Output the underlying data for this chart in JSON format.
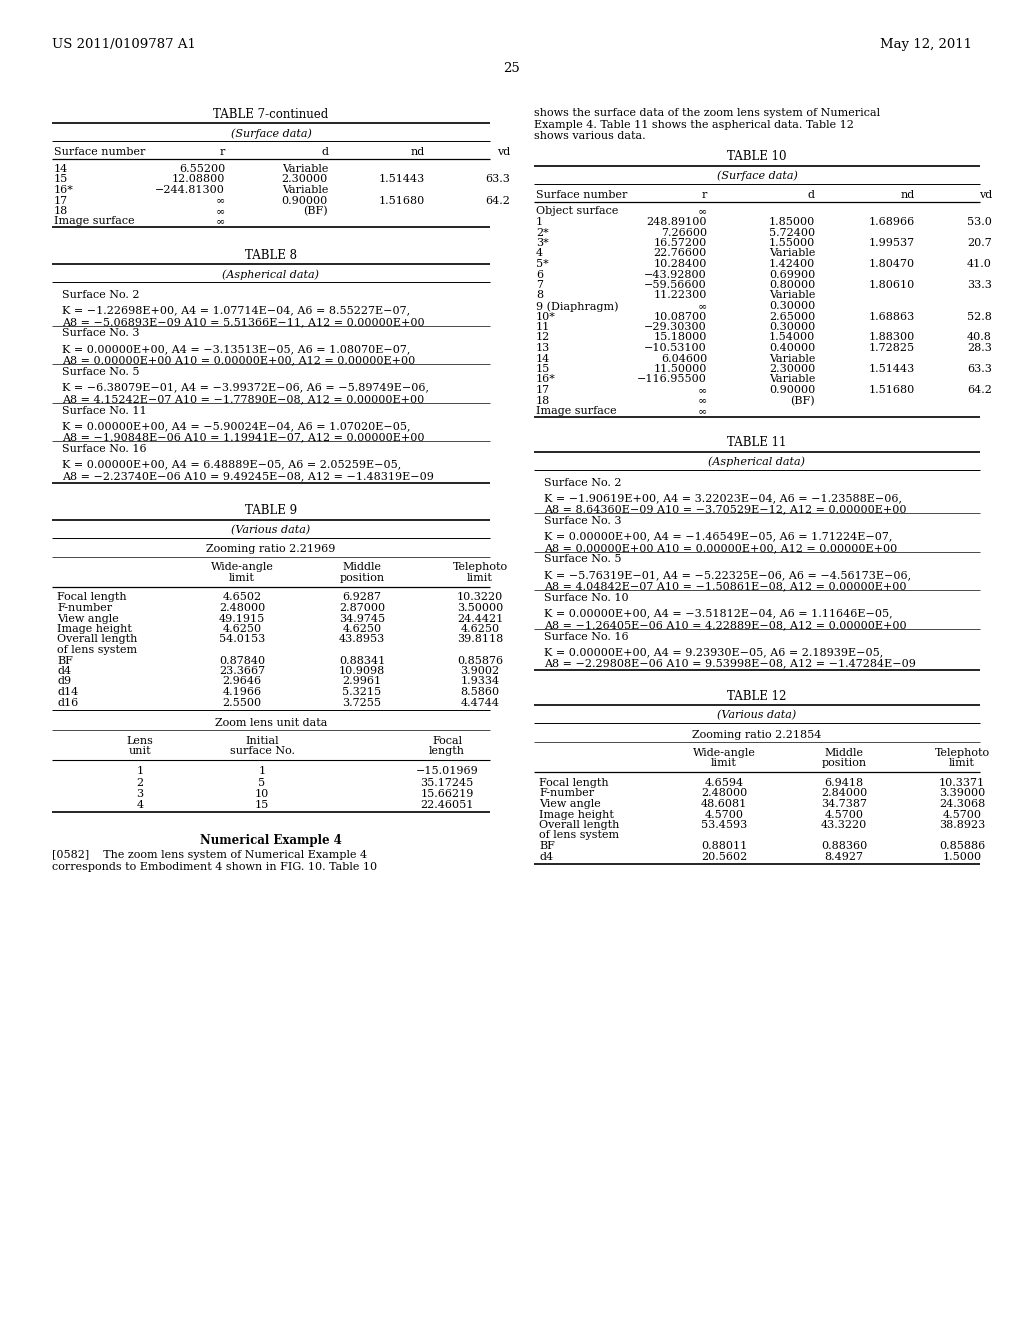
{
  "header_left": "US 2011/0109787 A1",
  "header_right": "May 12, 2011",
  "page_number": "25",
  "background_color": "#ffffff",
  "table7_title": "TABLE 7-continued",
  "table7_subtitle": "(Surface data)",
  "table7_headers": [
    "Surface number",
    "r",
    "d",
    "nd",
    "vd"
  ],
  "table7_rows": [
    [
      "14",
      "6.55200",
      "Variable",
      "",
      ""
    ],
    [
      "15",
      "12.08800",
      "2.30000",
      "1.51443",
      "63.3"
    ],
    [
      "16*",
      "−244.81300",
      "Variable",
      "",
      ""
    ],
    [
      "17",
      "∞",
      "0.90000",
      "1.51680",
      "64.2"
    ],
    [
      "18",
      "∞",
      "(BF)",
      "",
      ""
    ],
    [
      "Image surface",
      "∞",
      "",
      "",
      ""
    ]
  ],
  "table8_title": "TABLE 8",
  "table8_subtitle": "(Aspherical data)",
  "table8_rows": [
    "Surface No. 2",
    "K = −1.22698E+00, A4 = 1.07714E−04, A6 = 8.55227E−07,",
    "A8 = −5.06893E−09 A10 = 5.51366E−11, A12 = 0.00000E+00",
    "Surface No. 3",
    "K = 0.00000E+00, A4 = −3.13513E−05, A6 = 1.08070E−07,",
    "A8 = 0.00000E+00 A10 = 0.00000E+00, A12 = 0.00000E+00",
    "Surface No. 5",
    "K = −6.38079E−01, A4 = −3.99372E−06, A6 = −5.89749E−06,",
    "A8 = 4.15242E−07 A10 = −1.77890E−08, A12 = 0.00000E+00",
    "Surface No. 11",
    "K = 0.00000E+00, A4 = −5.90024E−04, A6 = 1.07020E−05,",
    "A8 = −1.90848E−06 A10 = 1.19941E−07, A12 = 0.00000E+00",
    "Surface No. 16",
    "K = 0.00000E+00, A4 = 6.48889E−05, A6 = 2.05259E−05,",
    "A8 = −2.23740E−06 A10 = 9.49245E−08, A12 = −1.48319E−09"
  ],
  "table9_title": "TABLE 9",
  "table9_subtitle": "(Various data)",
  "table9_zooming": "Zooming ratio 2.21969",
  "table9_col_headers": [
    "",
    "Wide-angle\nlimit",
    "Middle\nposition",
    "Telephoto\nlimit"
  ],
  "table9_rows": [
    [
      "Focal length",
      "4.6502",
      "6.9287",
      "10.3220"
    ],
    [
      "F-number",
      "2.48000",
      "2.87000",
      "3.50000"
    ],
    [
      "View angle",
      "49.1915",
      "34.9745",
      "24.4421"
    ],
    [
      "Image height",
      "4.6250",
      "4.6250",
      "4.6250"
    ],
    [
      "Overall length\nof lens system",
      "54.0153",
      "43.8953",
      "39.8118"
    ],
    [
      "BF",
      "0.87840",
      "0.88341",
      "0.85876"
    ],
    [
      "d4",
      "23.3667",
      "10.9098",
      "3.9002"
    ],
    [
      "d9",
      "2.9646",
      "2.9961",
      "1.9334"
    ],
    [
      "d14",
      "4.1966",
      "5.3215",
      "8.5860"
    ],
    [
      "d16",
      "2.5500",
      "3.7255",
      "4.4744"
    ]
  ],
  "table9_zoom_unit": "Zoom lens unit data",
  "table9_unit_headers": [
    "Lens\nunit",
    "Initial\nsurface No.",
    "",
    "Focal\nlength"
  ],
  "table9_unit_rows": [
    [
      "1",
      "1",
      "",
      "−15.01969"
    ],
    [
      "2",
      "5",
      "",
      "35.17245"
    ],
    [
      "3",
      "10",
      "",
      "15.66219"
    ],
    [
      "4",
      "15",
      "",
      "22.46051"
    ]
  ],
  "num_example_title": "Numerical Example 4",
  "num_example_para_1": "[0582]    The zoom lens system of Numerical Example 4",
  "num_example_para_2": "corresponds to Embodiment 4 shown in FIG. 10. Table 10",
  "right_intro_1": "shows the surface data of the zoom lens system of Numerical",
  "right_intro_2": "Example 4. Table 11 shows the aspherical data. Table 12",
  "right_intro_3": "shows various data.",
  "table10_title": "TABLE 10",
  "table10_subtitle": "(Surface data)",
  "table10_headers": [
    "Surface number",
    "r",
    "d",
    "nd",
    "vd"
  ],
  "table10_rows": [
    [
      "Object surface",
      "∞",
      "",
      "",
      ""
    ],
    [
      "1",
      "248.89100",
      "1.85000",
      "1.68966",
      "53.0"
    ],
    [
      "2*",
      "7.26600",
      "5.72400",
      "",
      ""
    ],
    [
      "3*",
      "16.57200",
      "1.55000",
      "1.99537",
      "20.7"
    ],
    [
      "4",
      "22.76600",
      "Variable",
      "",
      ""
    ],
    [
      "5*",
      "10.28400",
      "1.42400",
      "1.80470",
      "41.0"
    ],
    [
      "6",
      "−43.92800",
      "0.69900",
      "",
      ""
    ],
    [
      "7",
      "−59.56600",
      "0.80000",
      "1.80610",
      "33.3"
    ],
    [
      "8",
      "11.22300",
      "Variable",
      "",
      ""
    ],
    [
      "9 (Diaphragm)",
      "∞",
      "0.30000",
      "",
      ""
    ],
    [
      "10*",
      "10.08700",
      "2.65000",
      "1.68863",
      "52.8"
    ],
    [
      "11",
      "−29.30300",
      "0.30000",
      "",
      ""
    ],
    [
      "12",
      "15.18000",
      "1.54000",
      "1.88300",
      "40.8"
    ],
    [
      "13",
      "−10.53100",
      "0.40000",
      "1.72825",
      "28.3"
    ],
    [
      "14",
      "6.04600",
      "Variable",
      "",
      ""
    ],
    [
      "15",
      "11.50000",
      "2.30000",
      "1.51443",
      "63.3"
    ],
    [
      "16*",
      "−116.95500",
      "Variable",
      "",
      ""
    ],
    [
      "17",
      "∞",
      "0.90000",
      "1.51680",
      "64.2"
    ],
    [
      "18",
      "∞",
      "(BF)",
      "",
      ""
    ],
    [
      "Image surface",
      "∞",
      "",
      "",
      ""
    ]
  ],
  "table11_title": "TABLE 11",
  "table11_subtitle": "(Aspherical data)",
  "table11_rows": [
    "Surface No. 2",
    "K = −1.90619E+00, A4 = 3.22023E−04, A6 = −1.23588E−06,",
    "A8 = 8.64360E−09 A10 = −3.70529E−12, A12 = 0.00000E+00",
    "Surface No. 3",
    "K = 0.00000E+00, A4 = −1.46549E−05, A6 = 1.71224E−07,",
    "A8 = 0.00000E+00 A10 = 0.00000E+00, A12 = 0.00000E+00",
    "Surface No. 5",
    "K = −5.76319E−01, A4 = −5.22325E−06, A6 = −4.56173E−06,",
    "A8 = 4.04842E−07 A10 = −1.50861E−08, A12 = 0.00000E+00",
    "Surface No. 10",
    "K = 0.00000E+00, A4 = −3.51812E−04, A6 = 1.11646E−05,",
    "A8 = −1.26405E−06 A10 = 4.22889E−08, A12 = 0.00000E+00",
    "Surface No. 16",
    "K = 0.00000E+00, A4 = 9.23930E−05, A6 = 2.18939E−05,",
    "A8 = −2.29808E−06 A10 = 9.53998E−08, A12 = −1.47284E−09"
  ],
  "table12_title": "TABLE 12",
  "table12_subtitle": "(Various data)",
  "table12_zooming": "Zooming ratio 2.21854",
  "table12_col_headers": [
    "",
    "Wide-angle\nlimit",
    "Middle\nposition",
    "Telephoto\nlimit"
  ],
  "table12_rows": [
    [
      "Focal length",
      "4.6594",
      "6.9418",
      "10.3371"
    ],
    [
      "F-number",
      "2.48000",
      "2.84000",
      "3.39000"
    ],
    [
      "View angle",
      "48.6081",
      "34.7387",
      "24.3068"
    ],
    [
      "Image height",
      "4.5700",
      "4.5700",
      "4.5700"
    ],
    [
      "Overall length\nof lens system",
      "53.4593",
      "43.3220",
      "38.8923"
    ],
    [
      "BF",
      "0.88011",
      "0.88360",
      "0.85886"
    ],
    [
      "d4",
      "20.5602",
      "8.4927",
      "1.5000"
    ]
  ]
}
